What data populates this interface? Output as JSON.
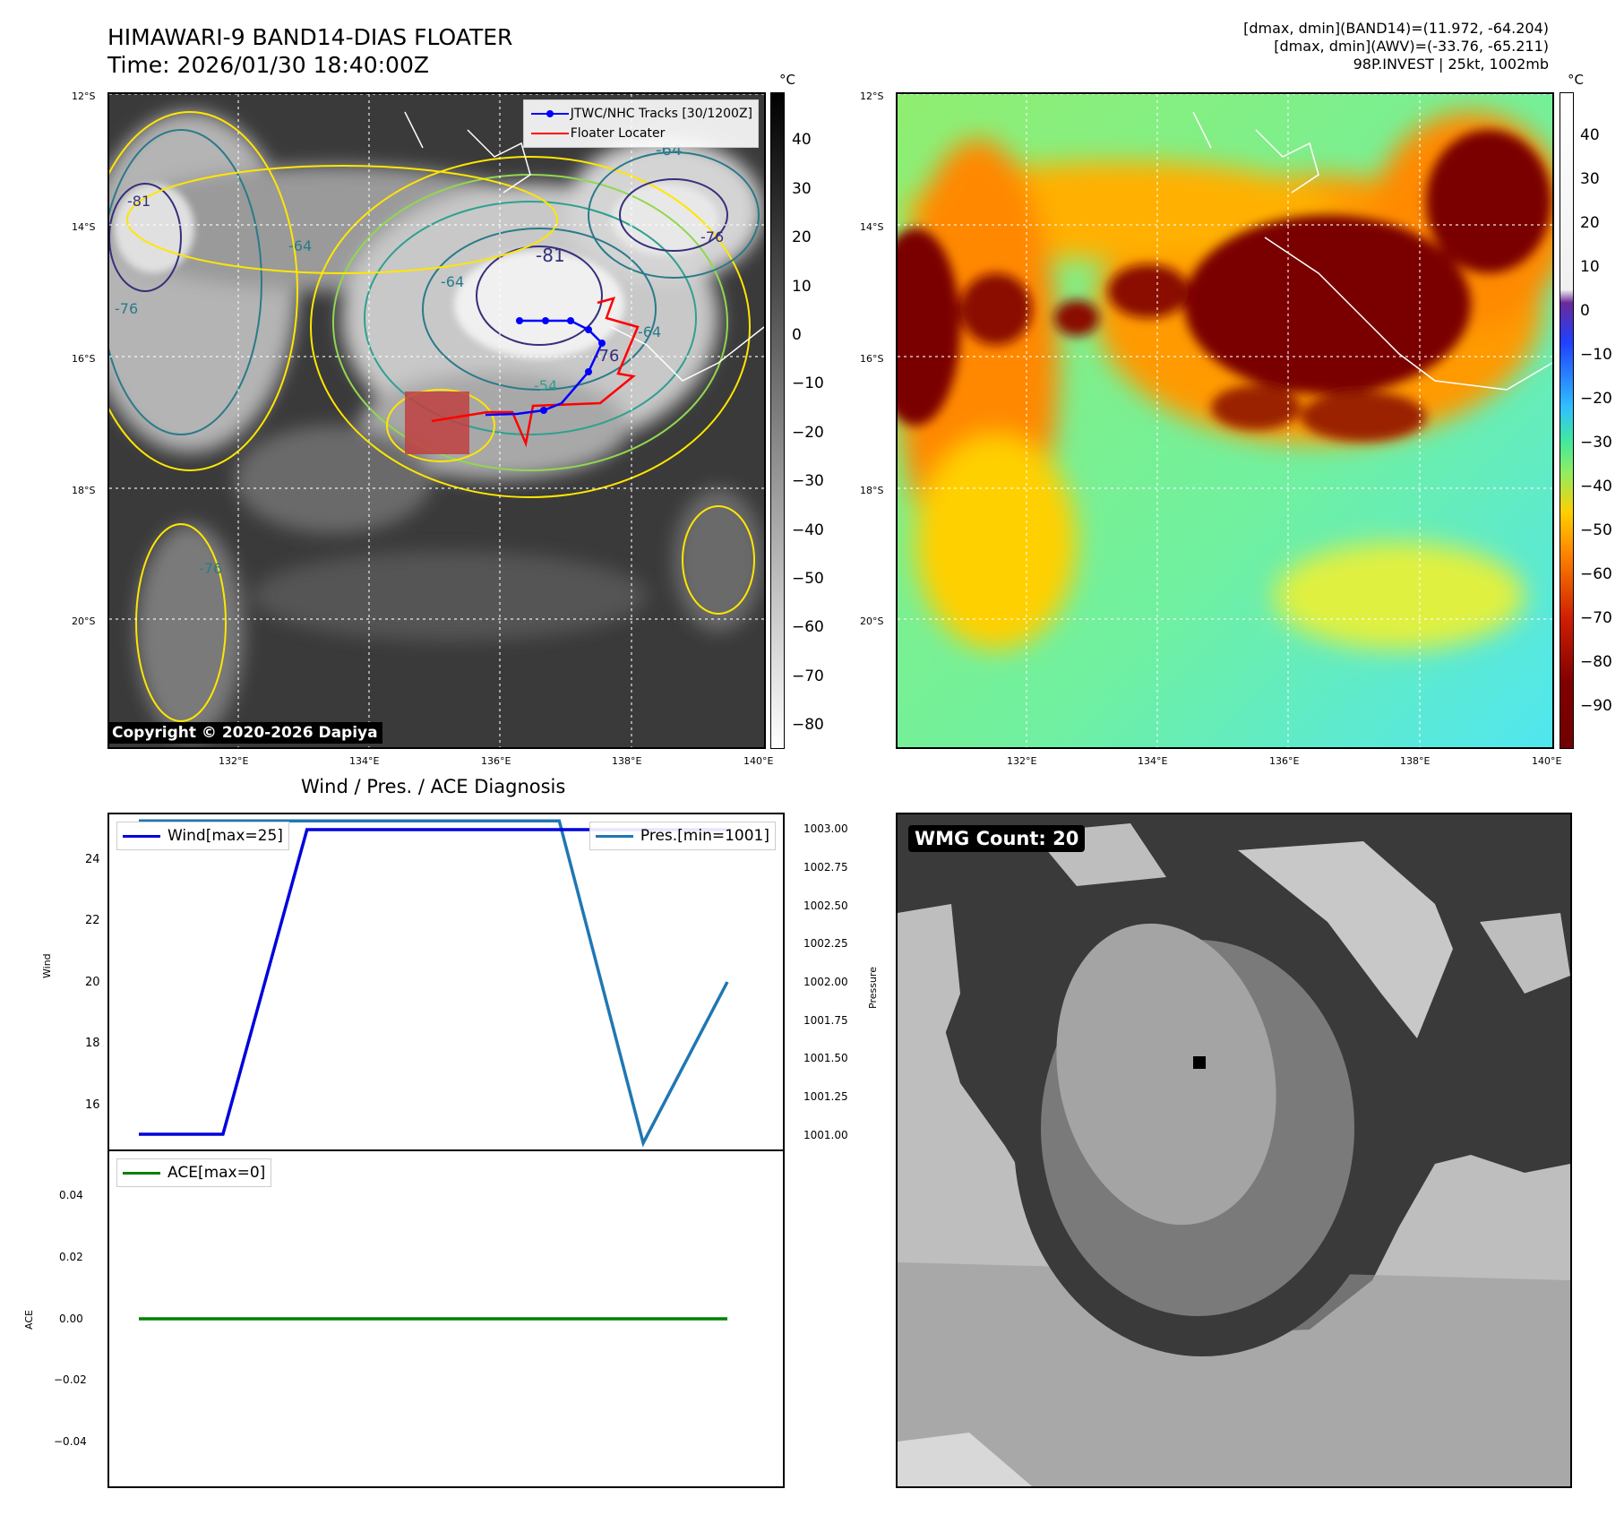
{
  "header": {
    "title_line1": "HIMAWARI-9 BAND14-DIAS FLOATER",
    "title_line2": "Time: 2026/01/30 18:40:00Z",
    "stats_line1": "[dmax, dmin](BAND14)=(11.972, -64.204)",
    "stats_line2": "[dmax, dmin](AWV)=(-33.76, -65.211)",
    "stats_line3": "98P.INVEST | 25kt, 1002mb"
  },
  "map": {
    "lat_labels": [
      "12°S",
      "14°S",
      "16°S",
      "18°S",
      "20°S"
    ],
    "lon_labels": [
      "132°E",
      "134°E",
      "136°E",
      "138°E",
      "140°E"
    ],
    "legend_tracks": "JTWC/NHC Tracks [30/1200Z]",
    "legend_floater": "Floater Locater",
    "contour_labels": [
      "-81",
      "-76",
      "-64",
      "-64",
      "-64",
      "-54",
      "-76",
      "-81",
      "-76",
      "-76",
      "-64"
    ],
    "copyright": "Copyright © 2020-2026 Dapiya",
    "track_color": "#0000ff",
    "floater_color": "#ff0000"
  },
  "colorbar_ir": {
    "unit": "°C",
    "ticks": [
      "40",
      "30",
      "20",
      "10",
      "0",
      "−10",
      "−20",
      "−30",
      "−40",
      "−50",
      "−60",
      "−70",
      "−80"
    ]
  },
  "colorbar_awv": {
    "unit": "°C",
    "ticks": [
      "40",
      "30",
      "20",
      "10",
      "0",
      "−10",
      "−20",
      "−30",
      "−40",
      "−50",
      "−60",
      "−70",
      "−80",
      "−90"
    ]
  },
  "diagnosis": {
    "title": "Wind / Pres. / ACE Diagnosis",
    "wind_axis_label": "Wind",
    "pressure_axis_label": "Pressure",
    "ace_axis_label": "ACE",
    "wind_legend": "Wind[max=25]",
    "pres_legend": "Pres.[min=1001]",
    "ace_legend": "ACE[max=0]",
    "wind_ticks": [
      "24",
      "22",
      "20",
      "18",
      "16"
    ],
    "pres_ticks": [
      "1003.00",
      "1002.75",
      "1002.50",
      "1002.25",
      "1002.00",
      "1001.75",
      "1001.50",
      "1001.25",
      "1001.00"
    ],
    "ace_ticks": [
      "0.04",
      "0.02",
      "0.00",
      "−0.02",
      "−0.04"
    ]
  },
  "chart_data": [
    {
      "type": "line",
      "series": [
        {
          "name": "Wind[max=25]",
          "axis": "left",
          "color": "#0000dd",
          "x": [
            0,
            1,
            2,
            3,
            4,
            5,
            6,
            7
          ],
          "values": [
            15,
            15,
            25,
            25,
            25,
            25,
            25,
            25
          ]
        },
        {
          "name": "Pres.[min=1001]",
          "axis": "right",
          "color": "#1f77b4",
          "x": [
            0,
            1,
            2,
            3,
            4,
            5,
            6,
            7
          ],
          "values": [
            1003,
            1003,
            1003,
            1003,
            1003,
            1003,
            1001,
            1002
          ]
        }
      ],
      "ylabel": "Wind",
      "ylabel_right": "Pressure",
      "ylim": [
        14.5,
        25.5
      ],
      "ylim_right": [
        1000.96,
        1003.04
      ]
    },
    {
      "type": "line",
      "series": [
        {
          "name": "ACE[max=0]",
          "color": "#008000",
          "x": [
            0,
            1,
            2,
            3,
            4,
            5,
            6,
            7
          ],
          "values": [
            0,
            0,
            0,
            0,
            0,
            0,
            0,
            0
          ]
        }
      ],
      "ylabel": "ACE",
      "ylim": [
        -0.055,
        0.055
      ]
    }
  ],
  "wmg": {
    "badge": "WMG Count: 20"
  }
}
